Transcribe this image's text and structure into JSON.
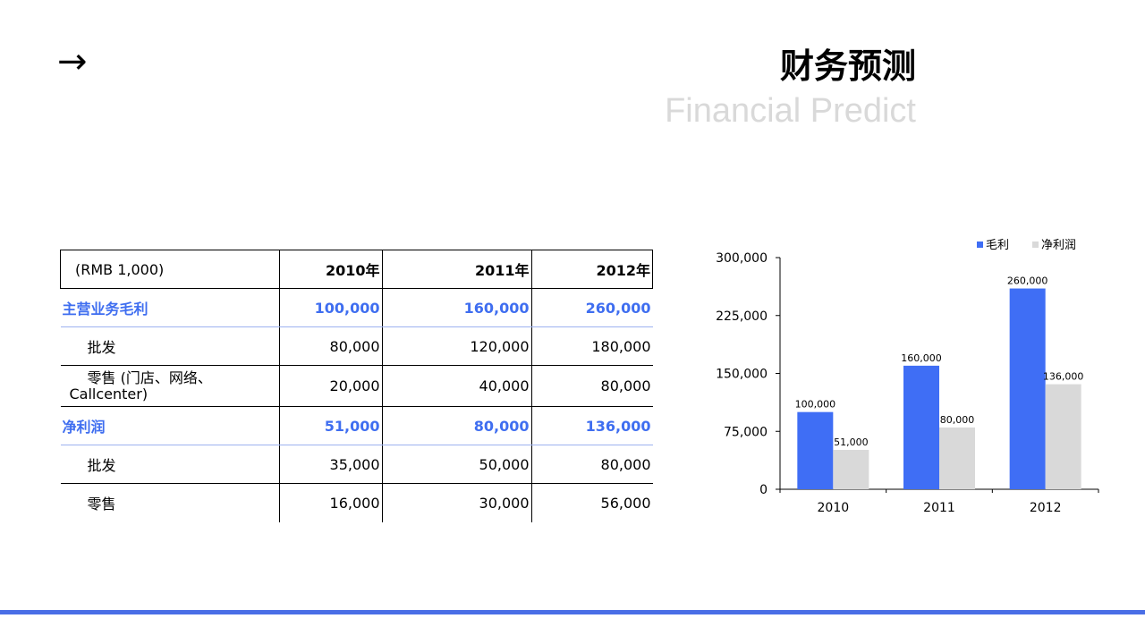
{
  "header": {
    "arrow": "→",
    "title_cn": "财务预测",
    "title_en": "Financial Predict"
  },
  "table": {
    "unit_label": "(RMB 1,000)",
    "years": [
      "2010年",
      "2011年",
      "2012年"
    ],
    "rows": [
      {
        "label": "主营业务毛利",
        "values": [
          "100,000",
          "160,000",
          "260,000"
        ]
      },
      {
        "label": "批发",
        "values": [
          "80,000",
          "120,000",
          "180,000"
        ]
      },
      {
        "label_line1": "零售 (门店、网络、",
        "label_line2": "Callcenter)",
        "values": [
          "20,000",
          "40,000",
          "80,000"
        ]
      },
      {
        "label": "净利润",
        "values": [
          "51,000",
          "80,000",
          "136,000"
        ]
      },
      {
        "label": "批发",
        "values": [
          "35,000",
          "50,000",
          "80,000"
        ]
      },
      {
        "label": "零售",
        "values": [
          "16,000",
          "30,000",
          "56,000"
        ]
      }
    ]
  },
  "chart_data": {
    "type": "bar",
    "categories": [
      "2010",
      "2011",
      "2012"
    ],
    "series": [
      {
        "name": "毛利",
        "values": [
          100000,
          160000,
          260000
        ],
        "labels": [
          "100,000",
          "160,000",
          "260,000"
        ],
        "color": "#3f6ef5"
      },
      {
        "name": "净利润",
        "values": [
          51000,
          80000,
          136000
        ],
        "labels": [
          "51,000",
          "80,000",
          "136,000"
        ],
        "color": "#d9d9d9"
      }
    ],
    "ylim": [
      0,
      300000
    ],
    "yticks": [
      0,
      75000,
      150000,
      225000,
      300000
    ],
    "ytick_labels": [
      "0",
      "75,000",
      "150,000",
      "225,000",
      "300,000"
    ],
    "legend_position": "top-right",
    "grid": false
  },
  "colors": {
    "accent": "#4a6ee6",
    "category_text": "#3f6ef0",
    "subtitle": "#d9d9d9"
  }
}
